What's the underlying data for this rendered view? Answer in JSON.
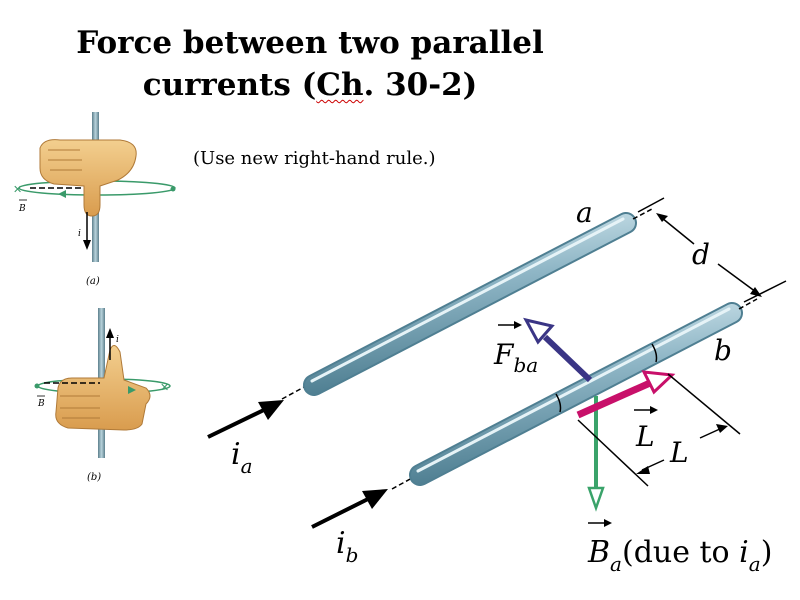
{
  "slide": {
    "title_line1": "Force between two parallel",
    "title_line2_prefix": "currents (",
    "title_line2_ch": "Ch",
    "title_line2_suffix": ". 30-2)",
    "note": "(Use new right-hand rule.)"
  },
  "hand_figures": {
    "a": {
      "caption": "(a)",
      "current_label": "i",
      "field_label": "B"
    },
    "b": {
      "caption": "(b)",
      "current_label": "i",
      "field_label": "B"
    }
  },
  "main_figure": {
    "wire_a_label": "a",
    "wire_b_label": "b",
    "separation_label": "d",
    "current_a": {
      "main": "i",
      "sub": "a"
    },
    "current_b": {
      "main": "i",
      "sub": "b"
    },
    "force": {
      "main": "F",
      "sub": "ba"
    },
    "length_vector": "L",
    "length_label": "L",
    "field": {
      "main": "B",
      "sub": "a",
      "paren_open": "(due to ",
      "paren_i": "i",
      "paren_sub": "a",
      "paren_close": ")"
    }
  },
  "colors": {
    "wire": "#8fb6c6",
    "wire_dark": "#4f7f92",
    "force_arrow": "#3a3585",
    "length_arrow": "#c8106a",
    "field_arrow": "#3aa36a",
    "skin": "#e8b46a",
    "field_ring": "#3a9a6a"
  }
}
